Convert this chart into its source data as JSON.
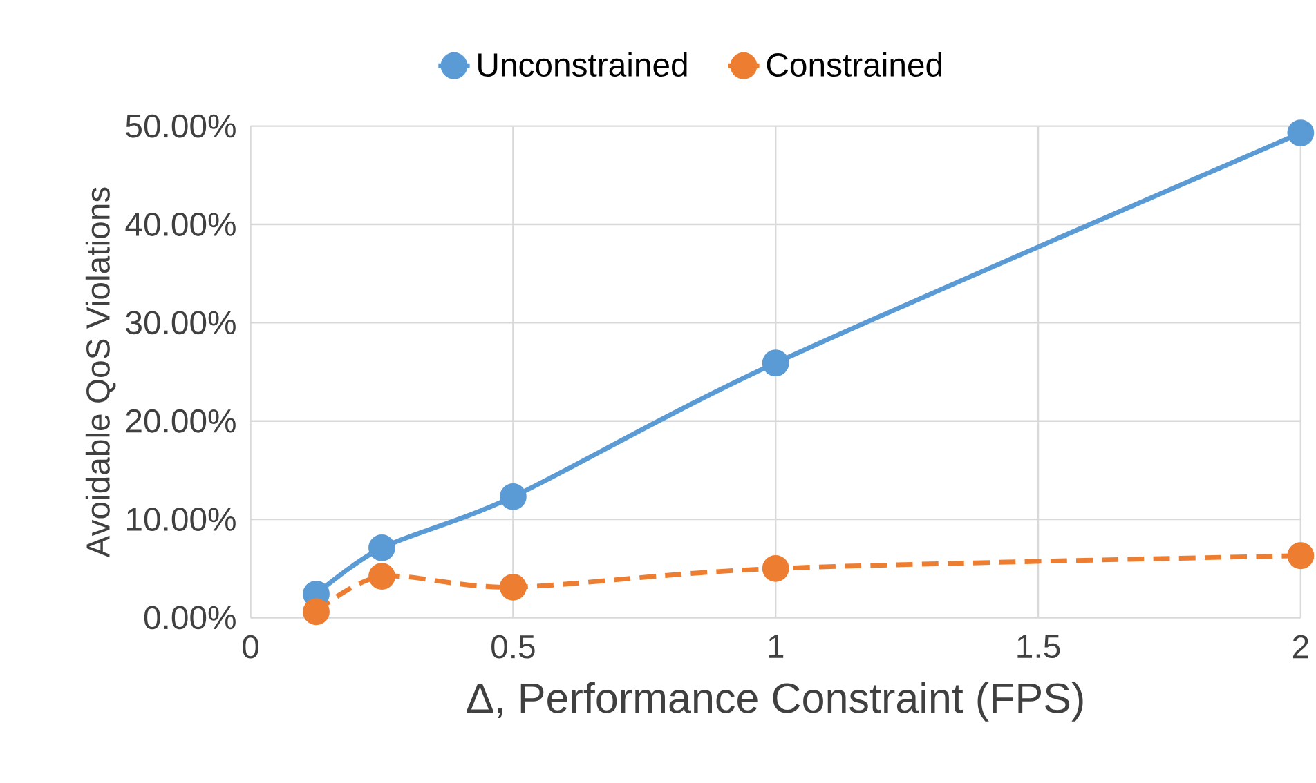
{
  "chart_data": {
    "type": "line",
    "xlabel": "Δ, Performance Constraint (FPS)",
    "ylabel": "Avoidable QoS Violations",
    "x": [
      0.125,
      0.25,
      0.5,
      1,
      2
    ],
    "series": [
      {
        "name": "Unconstrained",
        "color": "#5b9bd5",
        "values": [
          2.4,
          7.1,
          12.3,
          25.9,
          49.3
        ],
        "line_style": "solid"
      },
      {
        "name": "Constrained",
        "color": "#ed7d31",
        "values": [
          0.6,
          4.2,
          3.1,
          5.0,
          6.3
        ],
        "line_style": "dashed"
      }
    ],
    "xlim": [
      0,
      2
    ],
    "xticks": [
      0,
      0.5,
      1,
      1.5,
      2
    ],
    "ylim": [
      0,
      50
    ],
    "yticks": [
      {
        "value": 0,
        "label": "0.00%"
      },
      {
        "value": 10,
        "label": "10.00%"
      },
      {
        "value": 20,
        "label": "20.00%"
      },
      {
        "value": 30,
        "label": "30.00%"
      },
      {
        "value": 40,
        "label": "40.00%"
      },
      {
        "value": 50,
        "label": "50.00%"
      }
    ],
    "grid": true,
    "legend": "top",
    "marker": "circle"
  }
}
